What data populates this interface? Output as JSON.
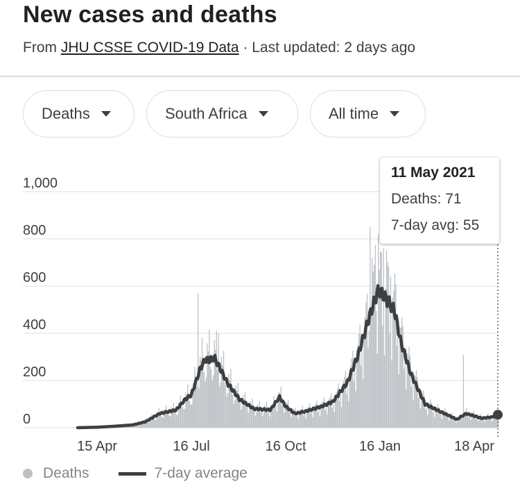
{
  "header": {
    "title": "New cases and deaths",
    "source_prefix": "From ",
    "source_link": "JHU CSSE COVID-19 Data",
    "updated": " · Last updated: 2 days ago"
  },
  "filters": [
    {
      "label": "Deaths"
    },
    {
      "label": "South Africa"
    },
    {
      "label": "All time"
    }
  ],
  "tooltip": {
    "date": "11 May 2021",
    "deaths_label": "Deaths: 71",
    "avg_label": "7-day avg: 55"
  },
  "legend": {
    "daily": "Deaths",
    "average": "7-day average"
  },
  "colors": {
    "bars": "#bdc1c6",
    "line": "#3c4043",
    "grid": "#e8eaed"
  },
  "chart_data": {
    "type": "bar",
    "x_range": [
      "2020-03-27",
      "2021-05-11"
    ],
    "x_ticks": [
      {
        "label": "15 Apr",
        "date": "2020-04-15"
      },
      {
        "label": "16 Jul",
        "date": "2020-07-16"
      },
      {
        "label": "16 Oct",
        "date": "2020-10-16"
      },
      {
        "label": "16 Jan",
        "date": "2021-01-16"
      },
      {
        "label": "18 Apr",
        "date": "2021-04-18"
      }
    ],
    "y_ticks": [
      "0",
      "200",
      "400",
      "600",
      "800",
      "1,000"
    ],
    "ylim": [
      0,
      1000
    ],
    "grid": true,
    "highlight": {
      "date": "2021-05-11",
      "deaths": 71,
      "avg": 55
    },
    "series": [
      {
        "name": "7-day average",
        "type": "line",
        "points": [
          [
            "2020-03-27",
            0
          ],
          [
            "2020-04-15",
            2
          ],
          [
            "2020-05-01",
            6
          ],
          [
            "2020-05-20",
            12
          ],
          [
            "2020-06-01",
            25
          ],
          [
            "2020-06-15",
            60
          ],
          [
            "2020-07-01",
            75
          ],
          [
            "2020-07-10",
            120
          ],
          [
            "2020-07-16",
            140
          ],
          [
            "2020-07-20",
            190
          ],
          [
            "2020-07-25",
            255
          ],
          [
            "2020-07-30",
            290
          ],
          [
            "2020-08-03",
            285
          ],
          [
            "2020-08-07",
            300
          ],
          [
            "2020-08-12",
            260
          ],
          [
            "2020-08-20",
            190
          ],
          [
            "2020-09-01",
            120
          ],
          [
            "2020-09-15",
            80
          ],
          [
            "2020-10-01",
            75
          ],
          [
            "2020-10-10",
            130
          ],
          [
            "2020-10-16",
            90
          ],
          [
            "2020-10-25",
            60
          ],
          [
            "2020-11-05",
            70
          ],
          [
            "2020-11-20",
            90
          ],
          [
            "2020-12-01",
            110
          ],
          [
            "2020-12-15",
            190
          ],
          [
            "2020-12-25",
            300
          ],
          [
            "2021-01-05",
            460
          ],
          [
            "2021-01-13",
            570
          ],
          [
            "2021-01-16",
            580
          ],
          [
            "2021-01-22",
            545
          ],
          [
            "2021-01-30",
            500
          ],
          [
            "2021-02-05",
            370
          ],
          [
            "2021-02-15",
            230
          ],
          [
            "2021-03-01",
            100
          ],
          [
            "2021-03-15",
            70
          ],
          [
            "2021-03-25",
            50
          ],
          [
            "2021-04-01",
            35
          ],
          [
            "2021-04-10",
            60
          ],
          [
            "2021-04-18",
            50
          ],
          [
            "2021-04-25",
            40
          ],
          [
            "2021-05-05",
            45
          ],
          [
            "2021-05-11",
            55
          ]
        ]
      },
      {
        "name": "Deaths",
        "type": "bar",
        "spikes": [
          [
            "2020-07-22",
            570
          ],
          [
            "2020-08-11",
            400
          ],
          [
            "2020-10-10",
            140
          ],
          [
            "2021-01-06",
            850
          ],
          [
            "2021-01-08",
            720
          ],
          [
            "2021-01-11",
            775
          ],
          [
            "2021-01-14",
            820
          ],
          [
            "2021-01-19",
            760
          ],
          [
            "2021-01-22",
            750
          ],
          [
            "2021-01-26",
            640
          ],
          [
            "2021-04-07",
            310
          ]
        ]
      }
    ]
  }
}
